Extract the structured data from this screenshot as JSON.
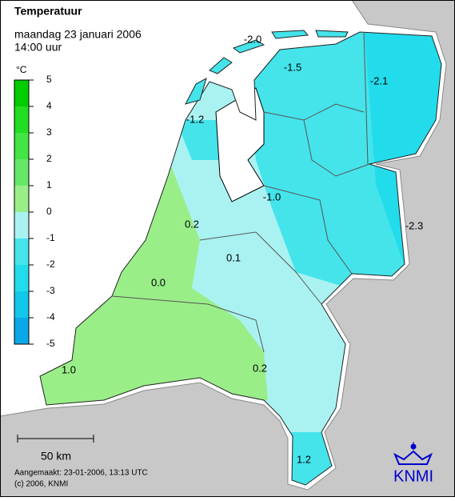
{
  "header": {
    "title": "Temperatuur",
    "date": "maandag 23 januari 2006",
    "time": "14:00 uur"
  },
  "legend": {
    "unit": "°C",
    "ticks": [
      5,
      4,
      3,
      2,
      1,
      0,
      -1,
      -2,
      -3,
      -4,
      -5
    ],
    "range": [
      -5,
      5
    ]
  },
  "map_labels": [
    "-2.0",
    "-1.5",
    "-2.1",
    "-1.2",
    "-1.0",
    "-2.3",
    "0.2",
    "0.1",
    "0.0",
    "1.0",
    "0.2",
    "1.2"
  ],
  "scale_bar": "50 km",
  "footer": {
    "created": "Aangemaakt: 23-01-2006, 13:13 UTC",
    "copyright": "(c) 2006, KNMI"
  },
  "logo": "KNMI"
}
